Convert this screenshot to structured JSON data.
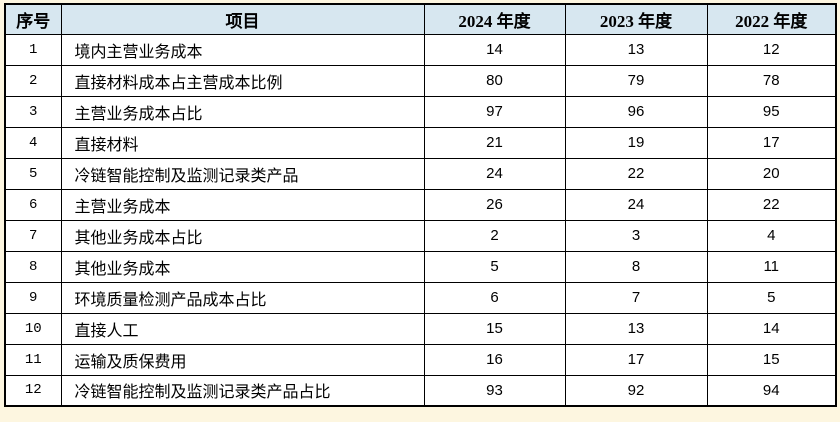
{
  "page": {
    "background_color": "#fdf6e0"
  },
  "table": {
    "colors": {
      "header_bg": "#d7e7f0",
      "row_bg": "#ffffff",
      "border": "#000000",
      "text": "#000000"
    },
    "headers": [
      "序号",
      "项目",
      "2024 年度",
      "2023 年度",
      "2022 年度"
    ],
    "rows": [
      [
        "1",
        "境内主营业务成本",
        "14",
        "13",
        "12"
      ],
      [
        "2",
        "直接材料成本占主营成本比例",
        "80",
        "79",
        "78"
      ],
      [
        "3",
        "主营业务成本占比",
        "97",
        "96",
        "95"
      ],
      [
        "4",
        "直接材料",
        "21",
        "19",
        "17"
      ],
      [
        "5",
        "冷链智能控制及监测记录类产品",
        "24",
        "22",
        "20"
      ],
      [
        "6",
        "主营业务成本",
        "26",
        "24",
        "22"
      ],
      [
        "7",
        "其他业务成本占比",
        "2",
        "3",
        "4"
      ],
      [
        "8",
        "其他业务成本",
        "5",
        "8",
        "11"
      ],
      [
        "9",
        "环境质量检测产品成本占比",
        "6",
        "7",
        "5"
      ],
      [
        "10",
        "直接人工",
        "15",
        "13",
        "14"
      ],
      [
        "11",
        "运输及质保费用",
        "16",
        "17",
        "15"
      ],
      [
        "12",
        "冷链智能控制及监测记录类产品占比",
        "93",
        "92",
        "94"
      ]
    ]
  }
}
